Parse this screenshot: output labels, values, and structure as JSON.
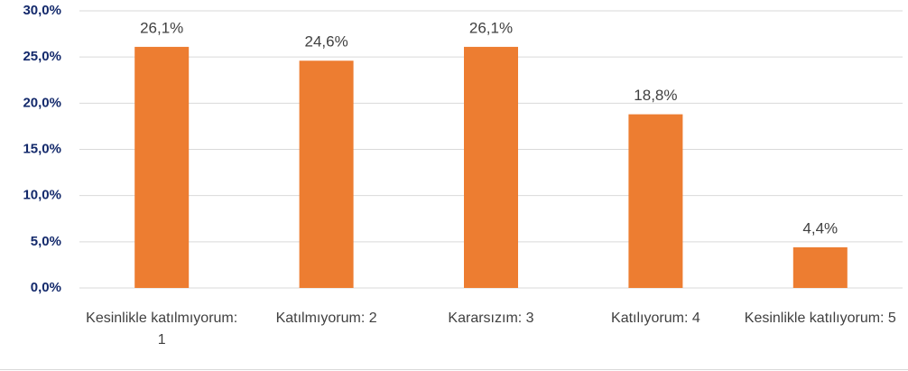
{
  "chart_data": {
    "type": "bar",
    "categories": [
      "Kesinlikle katılmıyorum: 1",
      "Katılmıyorum: 2",
      "Kararsızım: 3",
      "Katılıyorum: 4",
      "Kesinlikle katılıyorum: 5"
    ],
    "values": [
      26.1,
      24.6,
      26.1,
      18.8,
      4.4
    ],
    "value_labels": [
      "26,1%",
      "24,6%",
      "26,1%",
      "18,8%",
      "4,4%"
    ],
    "color": "#ed7d31",
    "ylim": [
      0,
      30
    ],
    "yticks": [
      {
        "value": 0,
        "label": "0,0%"
      },
      {
        "value": 5,
        "label": "5,0%"
      },
      {
        "value": 10,
        "label": "10,0%"
      },
      {
        "value": 15,
        "label": "15,0%"
      },
      {
        "value": 20,
        "label": "20,0%"
      },
      {
        "value": 25,
        "label": "25,0%"
      },
      {
        "value": 30,
        "label": "30,0%"
      }
    ],
    "grid": true
  }
}
